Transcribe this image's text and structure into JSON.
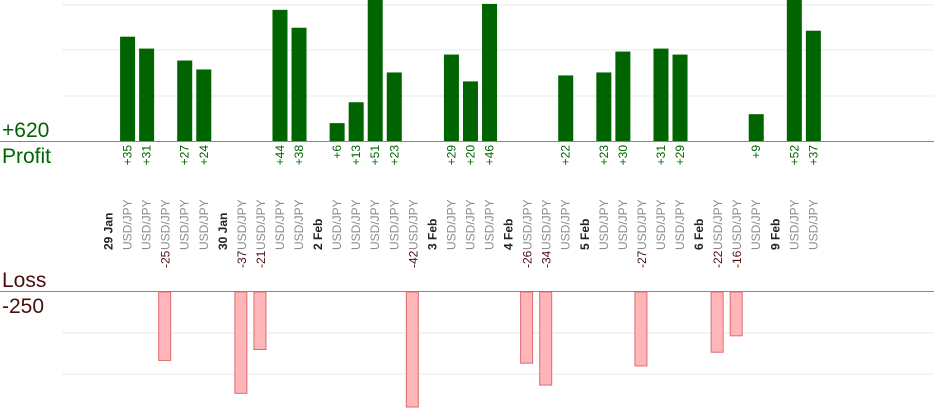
{
  "labels": {
    "profit_total": "+620",
    "profit": "Profit",
    "loss": "Loss",
    "loss_total": "-250"
  },
  "colors": {
    "profit_bar": "#006400",
    "loss_fill": "#ffb6b9",
    "loss_stroke": "#e06a70",
    "profit_text": "#006400",
    "loss_text": "#4a0f0f",
    "pair_text": "#8c8c8c",
    "date_text": "#222222",
    "grid": "#e9e9e9",
    "baseline": "#888888"
  },
  "chart_data": {
    "type": "bar",
    "title": "",
    "xlabel": "",
    "ylabel": "",
    "profit_ylim": [
      0,
      52
    ],
    "loss_ylim": [
      0,
      42
    ],
    "grid": true,
    "legend": "none",
    "slots": [
      {
        "date": "29 Jan"
      },
      {
        "pair": "USD/JPY",
        "value": 35,
        "label": "+35"
      },
      {
        "pair": "USD/JPY",
        "value": 31,
        "label": "+31"
      },
      {
        "pair": "USD/JPY",
        "value": -25,
        "label": "-25"
      },
      {
        "pair": "USD/JPY",
        "value": 27,
        "label": "+27"
      },
      {
        "pair": "USD/JPY",
        "value": 24,
        "label": "+24"
      },
      {
        "date": "30 Jan"
      },
      {
        "pair": "USD/JPY",
        "value": -37,
        "label": "-37"
      },
      {
        "pair": "USD/JPY",
        "value": -21,
        "label": "-21"
      },
      {
        "pair": "USD/JPY",
        "value": 44,
        "label": "+44"
      },
      {
        "pair": "USD/JPY",
        "value": 38,
        "label": "+38"
      },
      {
        "date": "2 Feb"
      },
      {
        "pair": "USD/JPY",
        "value": 6,
        "label": "+6"
      },
      {
        "pair": "USD/JPY",
        "value": 13,
        "label": "+13"
      },
      {
        "pair": "USD/JPY",
        "value": 51,
        "label": "+51"
      },
      {
        "pair": "USD/JPY",
        "value": 23,
        "label": "+23"
      },
      {
        "pair": "USD/JPY",
        "value": -42,
        "label": "-42"
      },
      {
        "date": "3 Feb"
      },
      {
        "pair": "USD/JPY",
        "value": 29,
        "label": "+29"
      },
      {
        "pair": "USD/JPY",
        "value": 20,
        "label": "+20"
      },
      {
        "pair": "USD/JPY",
        "value": 46,
        "label": "+46"
      },
      {
        "date": "4 Feb"
      },
      {
        "pair": "USD/JPY",
        "value": -26,
        "label": "-26"
      },
      {
        "pair": "USD/JPY",
        "value": -34,
        "label": "-34"
      },
      {
        "pair": "USD/JPY",
        "value": 22,
        "label": "+22"
      },
      {
        "date": "5 Feb"
      },
      {
        "pair": "USD/JPY",
        "value": 23,
        "label": "+23"
      },
      {
        "pair": "USD/JPY",
        "value": 30,
        "label": "+30"
      },
      {
        "pair": "USD/JPY",
        "value": -27,
        "label": "-27"
      },
      {
        "pair": "USD/JPY",
        "value": 31,
        "label": "+31"
      },
      {
        "pair": "USD/JPY",
        "value": 29,
        "label": "+29"
      },
      {
        "date": "6 Feb"
      },
      {
        "pair": "USD/JPY",
        "value": -22,
        "label": "-22"
      },
      {
        "pair": "USD/JPY",
        "value": -16,
        "label": "-16"
      },
      {
        "pair": "USD/JPY",
        "value": 9,
        "label": "+9"
      },
      {
        "date": "9 Feb"
      },
      {
        "pair": "USD/JPY",
        "value": 52,
        "label": "+52"
      },
      {
        "pair": "USD/JPY",
        "value": 37,
        "label": "+37"
      }
    ]
  }
}
